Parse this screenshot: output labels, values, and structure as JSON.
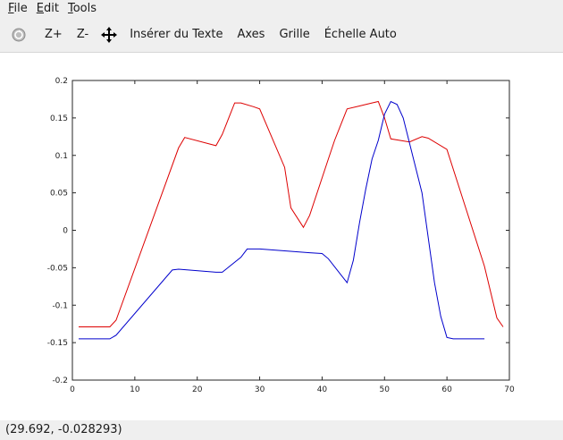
{
  "menu": {
    "file": {
      "pre": "",
      "u": "F",
      "post": "ile"
    },
    "edit": {
      "pre": "",
      "u": "E",
      "post": "dit"
    },
    "tools": {
      "pre": "",
      "u": "T",
      "post": "ools"
    }
  },
  "toolbar": {
    "zoom_in": "Z+",
    "zoom_out": "Z-",
    "insert_text": "Insérer du Texte",
    "axes": "Axes",
    "grid": "Grille",
    "autoscale": "Échelle Auto"
  },
  "status": {
    "coords": "(29.692, -0.028293)"
  },
  "colors": {
    "red_series": "#dd0000",
    "blue_series": "#0000cc"
  },
  "chart_data": {
    "type": "line",
    "xlim": [
      0,
      70
    ],
    "ylim": [
      -0.2,
      0.2
    ],
    "xticks": [
      0,
      10,
      20,
      30,
      40,
      50,
      60,
      70
    ],
    "yticks": [
      -0.2,
      -0.15,
      -0.1,
      -0.05,
      0,
      0.05,
      0.1,
      0.15,
      0.2
    ],
    "xtick_labels": [
      "0",
      "10",
      "20",
      "30",
      "40",
      "50",
      "60",
      "70"
    ],
    "ytick_labels": [
      "-0.2",
      "-0.15",
      "-0.1",
      "-0.05",
      "0",
      "0.05",
      "0.1",
      "0.15",
      "0.2"
    ],
    "grid": false,
    "title": "",
    "xlabel": "",
    "ylabel": "",
    "series": [
      {
        "color": "#dd0000",
        "x": [
          1,
          6,
          7,
          17,
          18,
          23,
          24,
          26,
          27,
          29,
          30,
          34,
          35,
          37,
          38,
          41,
          42,
          44,
          46,
          48,
          49,
          50,
          51,
          54,
          56,
          57,
          60,
          63,
          66,
          68,
          69
        ],
        "y": [
          -0.129,
          -0.129,
          -0.12,
          0.11,
          0.124,
          0.113,
          0.128,
          0.17,
          0.17,
          0.165,
          0.162,
          0.084,
          0.03,
          0.004,
          0.02,
          0.095,
          0.12,
          0.162,
          0.166,
          0.17,
          0.172,
          0.15,
          0.122,
          0.118,
          0.125,
          0.123,
          0.108,
          0.03,
          -0.048,
          -0.117,
          -0.129
        ]
      },
      {
        "color": "#0000cc",
        "x": [
          1,
          6,
          7,
          16,
          17,
          23,
          24,
          27,
          28,
          30,
          38,
          40,
          41,
          44,
          45,
          46,
          47,
          48,
          49,
          50,
          51,
          52,
          53,
          56,
          58,
          59,
          60,
          61,
          63,
          66
        ],
        "y": [
          -0.145,
          -0.145,
          -0.14,
          -0.053,
          -0.052,
          -0.056,
          -0.056,
          -0.036,
          -0.025,
          -0.025,
          -0.03,
          -0.031,
          -0.038,
          -0.07,
          -0.04,
          0.01,
          0.055,
          0.095,
          0.12,
          0.155,
          0.172,
          0.168,
          0.15,
          0.05,
          -0.07,
          -0.115,
          -0.143,
          -0.145,
          -0.145,
          -0.145
        ]
      }
    ]
  }
}
